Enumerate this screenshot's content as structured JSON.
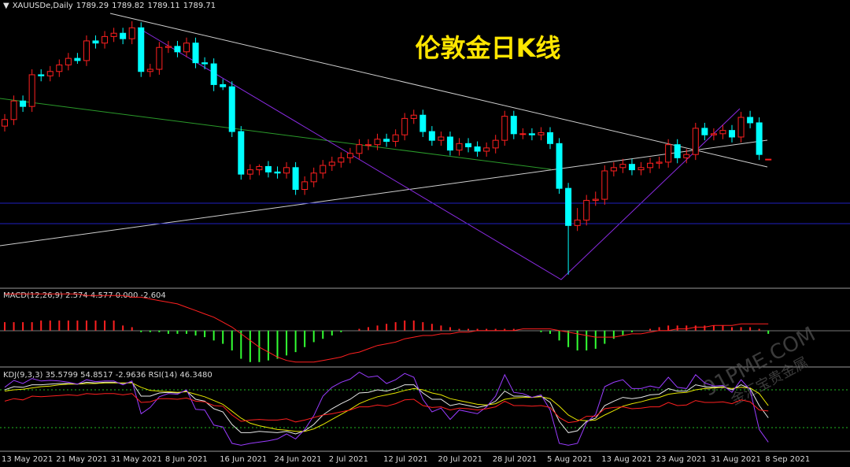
{
  "chart_data": [
    {
      "type": "candlestick",
      "title": "伦敦金日K线",
      "symbol": "XAUUSDe,Daily",
      "up_color": "#ff2020",
      "down_color": "#00ffff",
      "categories": [
        "13 May 2021",
        null,
        null,
        null,
        null,
        null,
        "21 May 2021",
        null,
        null,
        null,
        null,
        null,
        "31 May 2021",
        null,
        null,
        null,
        null,
        null,
        "8 Jun 2021",
        null,
        null,
        null,
        null,
        null,
        "16 Jun 2021",
        null,
        null,
        null,
        null,
        null,
        "24 Jun 2021",
        null,
        null,
        null,
        null,
        null,
        "2 Jul 2021",
        null,
        null,
        null,
        null,
        null,
        "12 Jul 2021",
        null,
        null,
        null,
        null,
        null,
        "20 Jul 2021",
        null,
        null,
        null,
        null,
        null,
        "28 Jul 2021",
        null,
        null,
        null,
        null,
        null,
        "5 Aug 2021",
        null,
        null,
        null,
        null,
        null,
        "13 Aug 2021",
        null,
        null,
        null,
        null,
        null,
        "23 Aug 2021",
        null,
        null,
        null,
        null,
        null,
        "31 Aug 2021",
        null,
        null,
        null,
        null,
        null,
        "8 Sep 2021"
      ],
      "open": [
        1820,
        1826,
        1843,
        1838,
        1867,
        1866,
        1870,
        1876,
        1882,
        1880,
        1898,
        1896,
        1902,
        1905,
        1900,
        1910,
        1870,
        1872,
        1892,
        1893,
        1888,
        1896,
        1878,
        1877,
        1858,
        1856,
        1815,
        1776,
        1780,
        1783,
        1778,
        1777,
        1782,
        1762,
        1769,
        1777,
        1784,
        1787,
        1791,
        1795,
        1803,
        1803,
        1808,
        1806,
        1812,
        1827,
        1830,
        1815,
        1807,
        1810,
        1798,
        1804,
        1801,
        1797,
        1800,
        1807,
        1829,
        1813,
        1813,
        1812,
        1814,
        1804,
        1763,
        1729,
        1734,
        1752,
        1753,
        1779,
        1782,
        1785,
        1780,
        1782,
        1786,
        1787,
        1803,
        1791,
        1794,
        1818,
        1812,
        1813,
        1816,
        1810,
        1828,
        1823,
        1789.29
      ],
      "high": [
        1831,
        1848,
        1848,
        1872,
        1872,
        1875,
        1881,
        1887,
        1887,
        1903,
        1903,
        1907,
        1910,
        1910,
        1916,
        1915,
        1877,
        1897,
        1898,
        1898,
        1901,
        1901,
        1883,
        1882,
        1863,
        1861,
        1820,
        1785,
        1785,
        1788,
        1783,
        1787,
        1787,
        1774,
        1782,
        1789,
        1792,
        1796,
        1800,
        1808,
        1808,
        1813,
        1813,
        1817,
        1832,
        1835,
        1835,
        1820,
        1815,
        1815,
        1809,
        1809,
        1806,
        1805,
        1812,
        1834,
        1834,
        1818,
        1818,
        1819,
        1819,
        1809,
        1768,
        1745,
        1757,
        1760,
        1784,
        1787,
        1790,
        1790,
        1787,
        1791,
        1792,
        1808,
        1808,
        1799,
        1823,
        1823,
        1818,
        1821,
        1821,
        1833,
        1834,
        1828,
        1789.82
      ],
      "low": [
        1815,
        1821,
        1833,
        1833,
        1861,
        1861,
        1865,
        1871,
        1877,
        1875,
        1891,
        1891,
        1897,
        1895,
        1895,
        1865,
        1865,
        1867,
        1887,
        1883,
        1883,
        1873,
        1872,
        1852,
        1853,
        1810,
        1771,
        1771,
        1775,
        1773,
        1772,
        1772,
        1757,
        1757,
        1764,
        1772,
        1779,
        1782,
        1786,
        1790,
        1798,
        1798,
        1801,
        1801,
        1807,
        1822,
        1810,
        1802,
        1802,
        1793,
        1793,
        1796,
        1792,
        1792,
        1795,
        1802,
        1808,
        1808,
        1807,
        1807,
        1799,
        1758,
        1684,
        1724,
        1729,
        1747,
        1748,
        1774,
        1777,
        1775,
        1775,
        1777,
        1781,
        1782,
        1786,
        1786,
        1789,
        1807,
        1807,
        1808,
        1805,
        1805,
        1818,
        1789,
        1789.11
      ],
      "close": [
        1826,
        1843,
        1838,
        1867,
        1866,
        1870,
        1876,
        1882,
        1880,
        1898,
        1896,
        1902,
        1905,
        1900,
        1910,
        1870,
        1872,
        1892,
        1893,
        1888,
        1896,
        1878,
        1877,
        1858,
        1856,
        1815,
        1776,
        1780,
        1783,
        1778,
        1777,
        1782,
        1762,
        1769,
        1777,
        1784,
        1787,
        1791,
        1795,
        1803,
        1803,
        1808,
        1806,
        1812,
        1827,
        1830,
        1815,
        1807,
        1810,
        1798,
        1804,
        1801,
        1797,
        1800,
        1807,
        1829,
        1813,
        1813,
        1812,
        1814,
        1804,
        1763,
        1729,
        1734,
        1752,
        1753,
        1779,
        1782,
        1785,
        1780,
        1782,
        1786,
        1787,
        1803,
        1791,
        1794,
        1818,
        1812,
        1813,
        1816,
        1810,
        1828,
        1823,
        1794,
        1789.71
      ],
      "ylim": [
        1673,
        1934
      ]
    },
    {
      "type": "macd",
      "label": "MACD(12,26,9) 2.574 4.577 0.000 -2.604",
      "positive_color": "#ff2020",
      "negative_color": "#33ff33",
      "histogram": [
        5,
        5,
        5,
        5,
        6,
        6,
        6,
        6,
        6,
        6,
        6,
        6,
        6,
        3,
        2,
        -1,
        -1,
        -1,
        -2,
        -2,
        -2,
        -3,
        -4,
        -6,
        -8,
        -12,
        -17,
        -19,
        -19,
        -18,
        -17,
        -15,
        -13,
        -10,
        -7,
        -5,
        -3,
        -1,
        0,
        1,
        2,
        3,
        4,
        5,
        6,
        6,
        5,
        4,
        3,
        2,
        1,
        1,
        1,
        1,
        1,
        1,
        1,
        0,
        0,
        -1,
        -2,
        -6,
        -10,
        -12,
        -12,
        -11,
        -8,
        -5,
        -3,
        -1,
        0,
        1,
        2,
        3,
        3,
        3,
        3,
        3,
        3,
        3,
        2,
        2,
        2,
        1,
        -2
      ],
      "series": [
        {
          "color": "#ff2020",
          "values": [
            22,
            22,
            22,
            22,
            22,
            22,
            22,
            22,
            22,
            21,
            21,
            21,
            21,
            21,
            20,
            20,
            19,
            18,
            17,
            16,
            14,
            12,
            10,
            8,
            5,
            2,
            -2,
            -6,
            -10,
            -13,
            -16,
            -18,
            -19,
            -19,
            -19,
            -18,
            -17,
            -16,
            -14,
            -13,
            -11,
            -9,
            -8,
            -7,
            -5,
            -4,
            -3,
            -3,
            -2,
            -2,
            -1,
            -1,
            0,
            0,
            0,
            0,
            0,
            1,
            1,
            1,
            1,
            0,
            -1,
            -2,
            -3,
            -4,
            -4,
            -4,
            -3,
            -2,
            -2,
            -1,
            0,
            0,
            1,
            1,
            2,
            2,
            3,
            3,
            3,
            4,
            4,
            4,
            4
          ]
        }
      ],
      "ylim": [
        -21,
        24
      ]
    },
    {
      "type": "kdj",
      "label": "KDJ(9,3,3) 35.5799 54.8517 -2.9636  RSI(14) 46.3480",
      "levels": [
        20,
        80
      ],
      "level_color": "#22bb22",
      "series": [
        {
          "color": "#e8e8e8",
          "values": [
            80,
            85,
            84,
            88,
            88,
            89,
            90,
            90,
            89,
            92,
            91,
            92,
            92,
            90,
            92,
            70,
            70,
            75,
            76,
            75,
            78,
            65,
            62,
            50,
            45,
            25,
            12,
            12,
            14,
            13,
            12,
            14,
            10,
            15,
            25,
            40,
            50,
            58,
            65,
            75,
            76,
            80,
            78,
            82,
            88,
            88,
            75,
            65,
            65,
            55,
            58,
            55,
            52,
            55,
            62,
            78,
            70,
            70,
            68,
            70,
            60,
            30,
            12,
            15,
            30,
            35,
            55,
            62,
            68,
            66,
            68,
            72,
            73,
            82,
            78,
            78,
            88,
            85,
            84,
            85,
            80,
            88,
            82,
            55,
            35.5799
          ]
        },
        {
          "color": "#e6e600",
          "values": [
            78,
            80,
            81,
            83,
            85,
            86,
            88,
            89,
            89,
            90,
            90,
            91,
            91,
            91,
            91,
            84,
            79,
            78,
            77,
            76,
            77,
            73,
            69,
            63,
            57,
            46,
            35,
            27,
            23,
            20,
            17,
            16,
            14,
            14,
            18,
            25,
            33,
            41,
            49,
            58,
            64,
            69,
            72,
            75,
            79,
            82,
            80,
            75,
            72,
            66,
            63,
            60,
            57,
            56,
            58,
            65,
            67,
            68,
            68,
            69,
            66,
            54,
            40,
            32,
            31,
            32,
            40,
            47,
            54,
            58,
            61,
            65,
            68,
            73,
            75,
            76,
            80,
            82,
            83,
            84,
            82,
            84,
            83,
            74,
            54.8517
          ]
        },
        {
          "color": "#9a3cff",
          "values": [
            84,
            95,
            90,
            98,
            94,
            95,
            94,
            92,
            89,
            96,
            93,
            94,
            94,
            88,
            94,
            42,
            52,
            69,
            74,
            73,
            80,
            49,
            48,
            24,
            21,
            -5,
            -8,
            -5,
            -3,
            -1,
            2,
            10,
            2,
            17,
            39,
            70,
            84,
            92,
            97,
            108,
            100,
            102,
            90,
            96,
            106,
            100,
            65,
            45,
            51,
            33,
            48,
            45,
            42,
            53,
            70,
            104,
            76,
            74,
            68,
            72,
            48,
            -5,
            -8,
            -5,
            28,
            41,
            85,
            92,
            96,
            82,
            82,
            86,
            83,
            100,
            84,
            82,
            104,
            91,
            86,
            87,
            76,
            96,
            80,
            17,
            -2.9636
          ]
        },
        {
          "color": "#ff2020",
          "values": [
            62,
            66,
            64,
            70,
            69,
            70,
            71,
            72,
            71,
            74,
            73,
            74,
            74,
            72,
            74,
            60,
            61,
            66,
            66,
            65,
            67,
            62,
            61,
            55,
            54,
            40,
            30,
            32,
            33,
            32,
            32,
            34,
            29,
            32,
            36,
            40,
            42,
            45,
            48,
            53,
            53,
            56,
            54,
            58,
            64,
            65,
            55,
            52,
            53,
            48,
            51,
            50,
            48,
            50,
            53,
            62,
            55,
            55,
            54,
            55,
            52,
            36,
            28,
            30,
            38,
            38,
            50,
            52,
            53,
            50,
            51,
            53,
            53,
            60,
            55,
            56,
            63,
            60,
            60,
            61,
            58,
            64,
            61,
            48,
            46.348
          ]
        }
      ],
      "ylim": [
        -15,
        112.5
      ]
    }
  ],
  "watermark": {
    "site": "91PME.COM",
    "brand": "金汇宝贵金属"
  }
}
